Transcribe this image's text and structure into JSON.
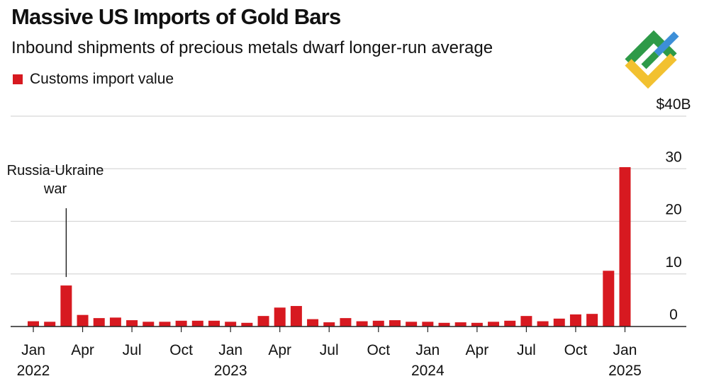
{
  "title": "Massive US Imports of Gold Bars",
  "subtitle": "Inbound shipments of precious metals dwarf longer-run average",
  "chart_data": {
    "type": "bar",
    "title": "Massive US Imports of Gold Bars",
    "subtitle": "Inbound shipments of precious metals dwarf longer-run average",
    "series": [
      {
        "name": "Customs import value",
        "color": "#d71920",
        "values": [
          1.0,
          0.9,
          7.8,
          2.2,
          1.6,
          1.7,
          1.2,
          0.9,
          0.9,
          1.1,
          1.1,
          1.1,
          0.9,
          0.7,
          2.0,
          3.6,
          3.9,
          1.4,
          0.8,
          1.6,
          1.0,
          1.1,
          1.2,
          0.9,
          0.9,
          0.7,
          0.8,
          0.7,
          0.9,
          1.1,
          2.0,
          1.0,
          1.5,
          2.3,
          2.4,
          10.6,
          30.3
        ]
      }
    ],
    "categories": [
      "Jan 2022",
      "Feb 2022",
      "Mar 2022",
      "Apr 2022",
      "May 2022",
      "Jun 2022",
      "Jul 2022",
      "Aug 2022",
      "Sep 2022",
      "Oct 2022",
      "Nov 2022",
      "Dec 2022",
      "Jan 2023",
      "Feb 2023",
      "Mar 2023",
      "Apr 2023",
      "May 2023",
      "Jun 2023",
      "Jul 2023",
      "Aug 2023",
      "Sep 2023",
      "Oct 2023",
      "Nov 2023",
      "Dec 2023",
      "Jan 2024",
      "Feb 2024",
      "Mar 2024",
      "Apr 2024",
      "May 2024",
      "Jun 2024",
      "Jul 2024",
      "Aug 2024",
      "Sep 2024",
      "Oct 2024",
      "Nov 2024",
      "Dec 2024",
      "Jan 2025"
    ],
    "x_ticks": [
      {
        "index": 0,
        "label": "Jan",
        "year": "2022"
      },
      {
        "index": 3,
        "label": "Apr",
        "year": ""
      },
      {
        "index": 6,
        "label": "Jul",
        "year": ""
      },
      {
        "index": 9,
        "label": "Oct",
        "year": ""
      },
      {
        "index": 12,
        "label": "Jan",
        "year": "2023"
      },
      {
        "index": 15,
        "label": "Apr",
        "year": ""
      },
      {
        "index": 18,
        "label": "Jul",
        "year": ""
      },
      {
        "index": 21,
        "label": "Oct",
        "year": ""
      },
      {
        "index": 24,
        "label": "Jan",
        "year": "2024"
      },
      {
        "index": 27,
        "label": "Apr",
        "year": ""
      },
      {
        "index": 30,
        "label": "Jul",
        "year": ""
      },
      {
        "index": 33,
        "label": "Oct",
        "year": ""
      },
      {
        "index": 36,
        "label": "Jan",
        "year": "2025"
      }
    ],
    "y_ticks": [
      {
        "value": 0,
        "label": "0"
      },
      {
        "value": 10,
        "label": "10"
      },
      {
        "value": 20,
        "label": "20"
      },
      {
        "value": 30,
        "label": "30"
      },
      {
        "value": 40,
        "label": "$40B"
      }
    ],
    "ylim": [
      0,
      40
    ],
    "y_axis_side": "right",
    "grid": true,
    "legend": "top-left",
    "annotations": [
      {
        "index": 2,
        "lines": [
          "Russia-Ukraine",
          "war"
        ]
      }
    ]
  }
}
